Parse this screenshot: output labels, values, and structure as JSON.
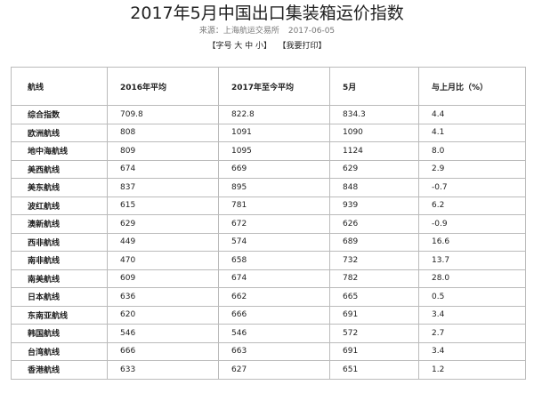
{
  "header": {
    "title": "2017年5月中国出口集装箱运价指数",
    "source": "来源：上海航运交易所",
    "date": "2017-06-05"
  },
  "toolbar": {
    "font_size": "【字号 大 中 小】",
    "print": "【我要打印】"
  },
  "table": {
    "columns": [
      "航线",
      "2016年平均",
      "2017年至今平均",
      "5月",
      "与上月比（%）"
    ],
    "rows": [
      [
        "综合指数",
        "709.8",
        "822.8",
        "834.3",
        "4.4"
      ],
      [
        "欧洲航线",
        "808",
        "1091",
        "1090",
        "4.1"
      ],
      [
        "地中海航线",
        "809",
        "1095",
        "1124",
        "8.0"
      ],
      [
        "美西航线",
        "674",
        "669",
        "629",
        "2.9"
      ],
      [
        "美东航线",
        "837",
        "895",
        "848",
        "-0.7"
      ],
      [
        "波红航线",
        "615",
        "781",
        "939",
        "6.2"
      ],
      [
        "澳新航线",
        "629",
        "672",
        "626",
        "-0.9"
      ],
      [
        "西非航线",
        "449",
        "574",
        "689",
        "16.6"
      ],
      [
        "南非航线",
        "470",
        "658",
        "732",
        "13.7"
      ],
      [
        "南美航线",
        "609",
        "674",
        "782",
        "28.0"
      ],
      [
        "日本航线",
        "636",
        "662",
        "665",
        "0.5"
      ],
      [
        "东南亚航线",
        "620",
        "666",
        "691",
        "3.4"
      ],
      [
        "韩国航线",
        "546",
        "546",
        "572",
        "2.7"
      ],
      [
        "台湾航线",
        "666",
        "663",
        "691",
        "3.4"
      ],
      [
        "香港航线",
        "633",
        "627",
        "651",
        "1.2"
      ]
    ]
  }
}
